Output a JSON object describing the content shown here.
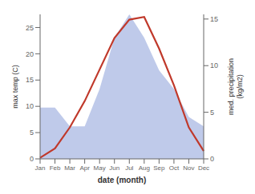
{
  "chart_data": {
    "type": "line",
    "xlabel": "date (month)",
    "ylabel": "max temp (C)",
    "y2label": "med. precipitation\n(kg/m2)",
    "categories": [
      "Jan",
      "Feb",
      "Mar",
      "Apr",
      "May",
      "Jun",
      "Jul",
      "Aug",
      "Sep",
      "Oct",
      "Nov",
      "Dec"
    ],
    "series": [
      {
        "type": "area",
        "axis": "y2",
        "color": "#b8c4e8",
        "values": [
          5.5,
          5.5,
          3.5,
          3.5,
          7.5,
          13.0,
          15.5,
          13.0,
          9.5,
          7.5,
          4.5,
          3.5
        ]
      },
      {
        "type": "line",
        "color": "#c0392b",
        "values": [
          0.2,
          2.0,
          6.0,
          11.0,
          17.0,
          23.0,
          26.5,
          27.0,
          21.0,
          14.0,
          6.0,
          1.5
        ]
      }
    ],
    "ylim": [
      0,
      27.5
    ],
    "yticks": [
      0,
      5,
      10,
      15,
      20,
      25
    ],
    "y2lim": [
      0,
      15.5
    ],
    "y2ticks": [
      0,
      5,
      10,
      15
    ],
    "grid": false
  }
}
